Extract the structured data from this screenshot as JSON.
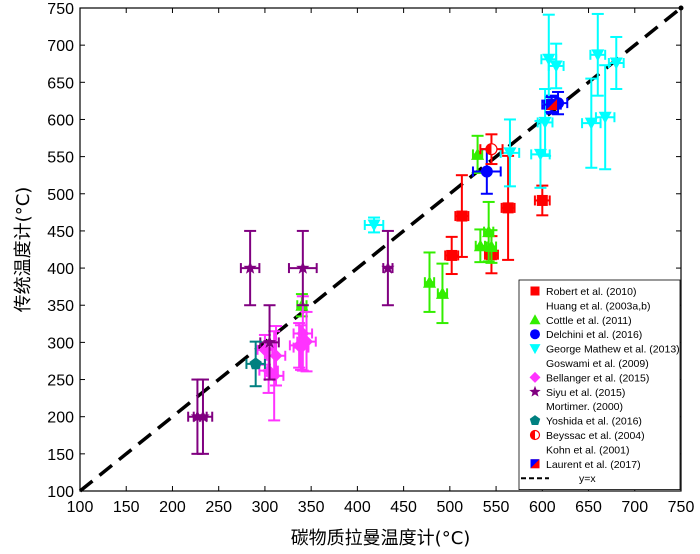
{
  "chart_data": {
    "type": "scatter",
    "xlabel": "碳物质拉曼温度计(°C)",
    "ylabel": "传统温度计(°C)",
    "xlim": [
      100,
      750
    ],
    "ylim": [
      100,
      750
    ],
    "xticks": [
      100,
      150,
      200,
      250,
      300,
      350,
      400,
      450,
      500,
      550,
      600,
      650,
      700,
      750
    ],
    "yticks": [
      100,
      150,
      200,
      250,
      300,
      350,
      400,
      450,
      500,
      550,
      600,
      650,
      700,
      750
    ],
    "reference_line": {
      "label": "y=x",
      "from": [
        100,
        100
      ],
      "to": [
        750,
        750
      ]
    },
    "series": [
      {
        "name": "Robert et al. (2010)",
        "marker": "square",
        "color": "#ff0000",
        "points": [
          {
            "x": 502,
            "y": 417,
            "xerr": 7,
            "yerr": 25
          },
          {
            "x": 513,
            "y": 470,
            "xerr": 7,
            "yerr": 55
          },
          {
            "x": 545,
            "y": 418,
            "xerr": 7,
            "yerr": 25
          },
          {
            "x": 563,
            "y": 481,
            "xerr": 7,
            "yerr": 70
          },
          {
            "x": 600,
            "y": 491,
            "xerr": 8,
            "yerr": 20
          }
        ]
      },
      {
        "name": "Huang et al. (2003a,b)",
        "marker": "square",
        "color": "#ff0000",
        "points": []
      },
      {
        "name": "Cottle et al. (2011)",
        "marker": "triangle-up",
        "color": "#33ee00",
        "points": [
          {
            "x": 478,
            "y": 381,
            "xerr": 5,
            "yerr": 40
          },
          {
            "x": 492,
            "y": 366,
            "xerr": 5,
            "yerr": 40
          },
          {
            "x": 530,
            "y": 553,
            "xerr": 5,
            "yerr": 25
          },
          {
            "x": 533,
            "y": 430,
            "xerr": 5,
            "yerr": 22
          },
          {
            "x": 542,
            "y": 449,
            "xerr": 5,
            "yerr": 40
          },
          {
            "x": 545,
            "y": 429,
            "xerr": 5,
            "yerr": 22
          },
          {
            "x": 340,
            "y": 350,
            "xerr": 5,
            "yerr": 15
          }
        ]
      },
      {
        "name": "Delchini et al. (2016)",
        "marker": "circle",
        "color": "#0000ff",
        "points": [
          {
            "x": 617,
            "y": 622,
            "xerr": 10,
            "yerr": 15
          },
          {
            "x": 610,
            "y": 620,
            "xerr": 10,
            "yerr": 12
          },
          {
            "x": 540,
            "y": 530,
            "xerr": 15,
            "yerr": 30
          }
        ]
      },
      {
        "name": "George Mathew et al. (2013)",
        "marker": "triangle-down",
        "color": "#00ffff",
        "points": [
          {
            "x": 418,
            "y": 458,
            "xerr": 10,
            "yerr": 10
          },
          {
            "x": 565,
            "y": 555,
            "xerr": 10,
            "yerr": 45
          },
          {
            "x": 598,
            "y": 553,
            "xerr": 10,
            "yerr": 45
          },
          {
            "x": 603,
            "y": 596,
            "xerr": 8,
            "yerr": 45
          },
          {
            "x": 607,
            "y": 681,
            "xerr": 8,
            "yerr": 60
          },
          {
            "x": 615,
            "y": 672,
            "xerr": 8,
            "yerr": 30
          },
          {
            "x": 653,
            "y": 595,
            "xerr": 10,
            "yerr": 60
          },
          {
            "x": 660,
            "y": 687,
            "xerr": 8,
            "yerr": 55
          },
          {
            "x": 668,
            "y": 603,
            "xerr": 10,
            "yerr": 70
          },
          {
            "x": 680,
            "y": 676,
            "xerr": 8,
            "yerr": 35
          }
        ]
      },
      {
        "name": "Goswami et al. (2009)",
        "marker": "triangle-down",
        "color": "#00ffff",
        "points": []
      },
      {
        "name": "Bellanger et al. (2015)",
        "marker": "diamond",
        "color": "#ff33ff",
        "points": [
          {
            "x": 300,
            "y": 290,
            "xerr": 8,
            "yerr": 20
          },
          {
            "x": 304,
            "y": 262,
            "xerr": 10,
            "yerr": 30
          },
          {
            "x": 310,
            "y": 255,
            "xerr": 10,
            "yerr": 60
          },
          {
            "x": 312,
            "y": 282,
            "xerr": 10,
            "yerr": 40
          },
          {
            "x": 337,
            "y": 296,
            "xerr": 10,
            "yerr": 30
          },
          {
            "x": 341,
            "y": 312,
            "xerr": 10,
            "yerr": 50
          },
          {
            "x": 345,
            "y": 301,
            "xerr": 10,
            "yerr": 40
          },
          {
            "x": 339,
            "y": 293,
            "xerr": 8,
            "yerr": 30
          }
        ]
      },
      {
        "name": "Siyu et al. (2015)",
        "marker": "star",
        "color": "#800080",
        "points": [
          {
            "x": 227,
            "y": 200,
            "xerr": 10,
            "yerr": 50
          },
          {
            "x": 233,
            "y": 200,
            "xerr": 10,
            "yerr": 50
          },
          {
            "x": 284,
            "y": 400,
            "xerr": 10,
            "yerr": 50
          },
          {
            "x": 305,
            "y": 300,
            "xerr": 10,
            "yerr": 50
          },
          {
            "x": 341,
            "y": 400,
            "xerr": 15,
            "yerr": 50
          },
          {
            "x": 433,
            "y": 400,
            "xerr": 5,
            "yerr": 50
          }
        ]
      },
      {
        "name": "Mortimer. (2000)",
        "marker": "star",
        "color": "#800080",
        "points": []
      },
      {
        "name": "Yoshida et al. (2016)",
        "marker": "pentagon",
        "color": "#008080",
        "points": [
          {
            "x": 290,
            "y": 271,
            "xerr": 10,
            "yerr": 30
          }
        ]
      },
      {
        "name": "Beyssac et al. (2004)",
        "marker": "half-circle",
        "color": "#ff0000",
        "points": [
          {
            "x": 545,
            "y": 560,
            "xerr": 12,
            "yerr": 20
          }
        ]
      },
      {
        "name": "Kohn et al. (2001)",
        "marker": "half-circle",
        "color": "#ff0000",
        "points": []
      },
      {
        "name": "Laurent et al. (2017)",
        "marker": "split-square",
        "color": "#0000ff",
        "points": [
          {
            "x": 610,
            "y": 620,
            "xerr": 8,
            "yerr": 10
          }
        ]
      },
      {
        "name": "y=x",
        "marker": "dashed-line",
        "color": "#000000",
        "points": []
      }
    ]
  }
}
